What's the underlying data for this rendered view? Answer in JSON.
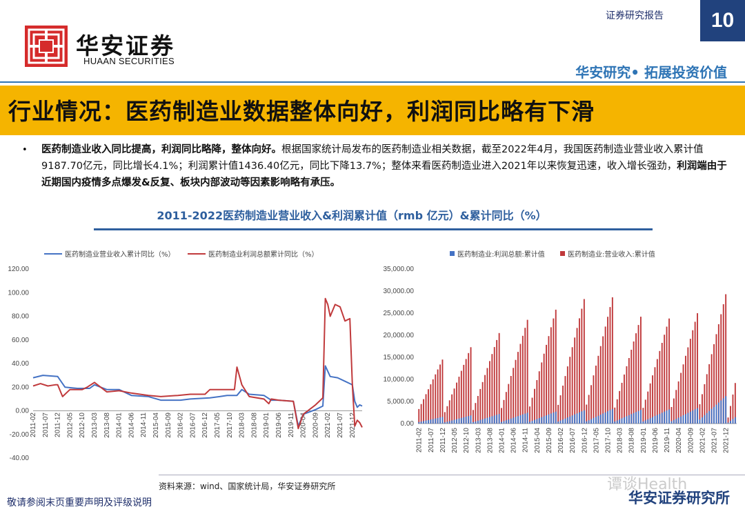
{
  "header": {
    "brand_cn": "华安证券",
    "brand_en": "HUAAN SECURITIES",
    "report_type": "证券研究报告",
    "page_number": "10",
    "slogan": "华安研究• 拓展投资价值"
  },
  "title": "行业情况：医药制造业数据整体向好，利润同比略有下滑",
  "bullet": {
    "bold": "医药制造业收入同比提高，利润同比略降，整体向好。",
    "part1": "根据国家统计局发布的医药制造业相关数据，截至2022年4月，我国医药制造业营业收入累计值9187.70亿元，同比增长4.1%；利润累计值1436.40亿元，同比下降13.7%；整体来看医药制造业进入2021年以来恢复迅速，收入增长强劲，",
    "bold2": "利润端由于近期国内疫情多点爆发&反复、板块内部波动等因素影响略有承压。"
  },
  "chart_heading": "2011-2022医药制造业营业收入&利润累计值（rmb 亿元）&累计同比（%）",
  "source": "资料来源：wind、国家统计局，华安证券研究所",
  "disclaimer": "敬请参阅末页重要声明及评级说明",
  "footer_brand": "华安证券研究所",
  "watermark": "谭谈Health",
  "colors": {
    "revenue": "#4472c4",
    "profit": "#c0393b",
    "navy": "#21427d",
    "accent": "#f5b400"
  },
  "chart_data": [
    {
      "type": "line",
      "legend": [
        "医药制造业营业收入累计同比（%）",
        "医药制造业利润总额累计同比（%）"
      ],
      "ylim": [
        -40,
        120
      ],
      "yticks": [
        "120.00",
        "100.00",
        "80.00",
        "60.00",
        "40.00",
        "20.00",
        "0.00",
        "-20.00",
        "-40.00"
      ],
      "x_tick_labels": [
        "2011-02",
        "2011-07",
        "2011-12",
        "2012-05",
        "2012-10",
        "2013-03",
        "2013-08",
        "2014-01",
        "2014-06",
        "2014-11",
        "2015-04",
        "2015-09",
        "2016-02",
        "2016-07",
        "2016-12",
        "2017-05",
        "2017-10",
        "2018-03",
        "2018-08",
        "2019-01",
        "2019-06",
        "2019-11",
        "2020-04",
        "2020-09",
        "2021-02",
        "2021-07",
        "2021-12"
      ],
      "series": [
        {
          "name": "医药制造业营业收入累计同比（%）",
          "color": "#4472c4",
          "points": [
            [
              "2011-02",
              28
            ],
            [
              "2011-06",
              30
            ],
            [
              "2011-12",
              29
            ],
            [
              "2012-03",
              20
            ],
            [
              "2012-08",
              19
            ],
            [
              "2013-01",
              19
            ],
            [
              "2013-03",
              22
            ],
            [
              "2013-08",
              18
            ],
            [
              "2014-01",
              18
            ],
            [
              "2014-06",
              13
            ],
            [
              "2015-01",
              12
            ],
            [
              "2015-06",
              9
            ],
            [
              "2016-02",
              9
            ],
            [
              "2016-06",
              10
            ],
            [
              "2017-02",
              11
            ],
            [
              "2017-06",
              12
            ],
            [
              "2017-09",
              13
            ],
            [
              "2018-01",
              13
            ],
            [
              "2018-03",
              18
            ],
            [
              "2018-06",
              14
            ],
            [
              "2018-12",
              13
            ],
            [
              "2019-03",
              9
            ],
            [
              "2019-06",
              9
            ],
            [
              "2019-12",
              8
            ],
            [
              "2020-02",
              -13
            ],
            [
              "2020-04",
              -3
            ],
            [
              "2020-09",
              1
            ],
            [
              "2020-12",
              4
            ],
            [
              "2021-01",
              38
            ],
            [
              "2021-03",
              29
            ],
            [
              "2021-06",
              28
            ],
            [
              "2021-09",
              25
            ],
            [
              "2021-12",
              22
            ],
            [
              "2022-01",
              8
            ],
            [
              "2022-02",
              3
            ],
            [
              "2022-03",
              5
            ],
            [
              "2022-04",
              4
            ]
          ]
        },
        {
          "name": "医药制造业利润总额累计同比（%）",
          "color": "#c0393b",
          "points": [
            [
              "2011-02",
              21
            ],
            [
              "2011-05",
              23
            ],
            [
              "2011-08",
              21
            ],
            [
              "2011-11",
              22
            ],
            [
              "2011-12",
              22
            ],
            [
              "2012-02",
              12
            ],
            [
              "2012-05",
              18
            ],
            [
              "2012-10",
              18
            ],
            [
              "2012-12",
              20
            ],
            [
              "2013-03",
              24
            ],
            [
              "2013-08",
              16
            ],
            [
              "2014-01",
              17
            ],
            [
              "2014-06",
              15
            ],
            [
              "2015-01",
              13
            ],
            [
              "2015-06",
              12
            ],
            [
              "2016-01",
              13
            ],
            [
              "2016-06",
              14
            ],
            [
              "2016-12",
              14
            ],
            [
              "2017-02",
              18
            ],
            [
              "2017-09",
              18
            ],
            [
              "2017-12",
              18
            ],
            [
              "2018-01",
              37
            ],
            [
              "2018-03",
              22
            ],
            [
              "2018-06",
              12
            ],
            [
              "2018-12",
              10
            ],
            [
              "2019-02",
              6
            ],
            [
              "2019-03",
              10
            ],
            [
              "2019-06",
              9
            ],
            [
              "2019-12",
              8
            ],
            [
              "2020-02",
              -15
            ],
            [
              "2020-04",
              -3
            ],
            [
              "2020-09",
              5
            ],
            [
              "2020-11",
              9
            ],
            [
              "2020-12",
              11
            ],
            [
              "2021-01",
              95
            ],
            [
              "2021-02",
              90
            ],
            [
              "2021-03",
              80
            ],
            [
              "2021-05",
              90
            ],
            [
              "2021-07",
              88
            ],
            [
              "2021-09",
              76
            ],
            [
              "2021-11",
              78
            ],
            [
              "2021-12",
              22
            ],
            [
              "2022-01",
              -13
            ],
            [
              "2022-02",
              -8
            ],
            [
              "2022-03",
              -10
            ],
            [
              "2022-04",
              -14
            ]
          ]
        }
      ]
    },
    {
      "type": "bar",
      "legend": [
        "医药制造业:利润总额:累计值",
        "医药制造业:营业收入:累计值"
      ],
      "ylim": [
        0,
        35000
      ],
      "yticks": [
        "35,000.00",
        "30,000.00",
        "25,000.00",
        "20,000.00",
        "15,000.00",
        "10,000.00",
        "5,000.00",
        "0.00"
      ],
      "x_tick_labels": [
        "2011-02",
        "2011-07",
        "2011-12",
        "2012-05",
        "2012-10",
        "2013-03",
        "2013-08",
        "2014-01",
        "2014-06",
        "2014-11",
        "2015-04",
        "2015-09",
        "2016-02",
        "2016-07",
        "2016-12",
        "2017-05",
        "2017-10",
        "2018-03",
        "2018-08",
        "2019-01",
        "2019-06",
        "2019-11",
        "2020-04",
        "2020-09",
        "2021-02",
        "2021-07",
        "2021-12"
      ],
      "series": [
        {
          "name": "医药制造业:利润总额:累计值",
          "color": "#4472c4",
          "annual_profit": {
            "2011": 1500,
            "2012": 1850,
            "2013": 2150,
            "2014": 2450,
            "2015": 2700,
            "2016": 3000,
            "2017": 3300,
            "2018": 3100,
            "2019": 3200,
            "2020": 3500,
            "2021": 6200,
            "2022": 1436
          }
        },
        {
          "name": "医药制造业:营业收入:累计值",
          "color": "#c0393b",
          "annual_revenue": {
            "2011": 14500,
            "2012": 17300,
            "2013": 20500,
            "2014": 23500,
            "2015": 25800,
            "2016": 28200,
            "2017": 28600,
            "2018": 24200,
            "2019": 23800,
            "2020": 25000,
            "2021": 29300,
            "2022": 9188
          }
        }
      ]
    }
  ]
}
